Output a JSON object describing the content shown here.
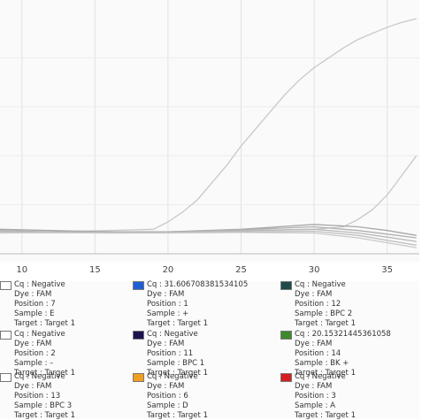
{
  "chart_data": {
    "type": "line",
    "xlabel": "",
    "ylabel": "",
    "x_ticks": [
      10,
      15,
      20,
      25,
      30,
      35
    ],
    "xlim": [
      8.5,
      37.2
    ],
    "ylim": [
      0,
      1
    ],
    "grid": true,
    "series": [
      {
        "x": [
          8.5,
          12,
          16,
          19,
          20,
          21,
          22,
          23,
          24,
          25,
          26,
          27,
          28,
          29,
          30,
          31,
          32,
          33,
          34,
          35,
          36,
          37
        ],
        "y": [
          0.085,
          0.09,
          0.095,
          0.1,
          0.13,
          0.17,
          0.22,
          0.29,
          0.36,
          0.44,
          0.51,
          0.58,
          0.65,
          0.71,
          0.76,
          0.8,
          0.84,
          0.875,
          0.9,
          0.925,
          0.945,
          0.96
        ],
        "color": "#c8c8c8"
      },
      {
        "x": [
          8.5,
          20,
          25,
          30,
          32,
          33,
          34,
          35,
          36,
          37
        ],
        "y": [
          0.085,
          0.09,
          0.095,
          0.1,
          0.11,
          0.14,
          0.18,
          0.24,
          0.32,
          0.4
        ],
        "color": "#c8c8c8"
      },
      {
        "x": [
          8.5,
          12,
          16,
          20,
          25,
          30,
          33,
          35,
          37
        ],
        "y": [
          0.1,
          0.095,
          0.09,
          0.09,
          0.1,
          0.12,
          0.11,
          0.095,
          0.075
        ],
        "color": "#a8a8a8"
      },
      {
        "x": [
          8.5,
          12,
          16,
          20,
          25,
          30,
          33,
          35,
          37
        ],
        "y": [
          0.095,
          0.09,
          0.088,
          0.088,
          0.098,
          0.11,
          0.095,
          0.08,
          0.065
        ],
        "color": "#b0b0b0"
      },
      {
        "x": [
          8.5,
          12,
          16,
          20,
          25,
          30,
          33,
          35,
          37
        ],
        "y": [
          0.09,
          0.088,
          0.086,
          0.087,
          0.094,
          0.1,
          0.085,
          0.068,
          0.05
        ],
        "color": "#b8b8b8"
      },
      {
        "x": [
          8.5,
          12,
          16,
          20,
          25,
          30,
          33,
          35,
          37
        ],
        "y": [
          0.088,
          0.087,
          0.085,
          0.086,
          0.09,
          0.092,
          0.075,
          0.055,
          0.035
        ],
        "color": "#c0c0c0"
      },
      {
        "x": [
          8.5,
          12,
          16,
          20,
          25,
          30,
          33,
          35,
          37
        ],
        "y": [
          0.086,
          0.086,
          0.085,
          0.085,
          0.087,
          0.085,
          0.065,
          0.045,
          0.025
        ],
        "color": "#c8c8c8"
      }
    ]
  },
  "legend": [
    {
      "color": "#ffffff",
      "cq": "Cq : Negative",
      "dye": "Dye : FAM",
      "position": "Position : 7",
      "sample": "Sample : E",
      "target": "Target : Target 1"
    },
    {
      "color": "#1f5fd6",
      "cq": "Cq : 31.606708381534105",
      "dye": "Dye : FAM",
      "position": "Position : 1",
      "sample": "Sample : +",
      "target": "Target : Target 1"
    },
    {
      "color": "#1e4a4a",
      "cq": "Cq : Negative",
      "dye": "Dye : FAM",
      "position": "Position : 12",
      "sample": "Sample : BPC 2",
      "target": "Target : Target 1"
    },
    {
      "color": "#ffffff",
      "cq": "Cq : Negative",
      "dye": "Dye : FAM",
      "position": "Position : 2",
      "sample": "Sample : –",
      "target": "Target : Target 1"
    },
    {
      "color": "#1b1450",
      "cq": "Cq : Negative",
      "dye": "Dye : FAM",
      "position": "Position : 11",
      "sample": "Sample : BPC 1",
      "target": "Target : Target 1"
    },
    {
      "color": "#3d8a2a",
      "cq": "Cq : 20.15321445361058",
      "dye": "Dye : FAM",
      "position": "Position : 14",
      "sample": "Sample : BK +",
      "target": "Target : Target 1"
    },
    {
      "color": "#ffffff",
      "cq": "Cq : Negative",
      "dye": "Dye : FAM",
      "position": "Position : 13",
      "sample": "Sample : BPC 3",
      "target": "Target : Target 1"
    },
    {
      "color": "#f0a020",
      "cq": "Cq : Negative",
      "dye": "Dye : FAM",
      "position": "Position : 6",
      "sample": "Sample : D",
      "target": "Target : Target 1"
    },
    {
      "color": "#d42020",
      "cq": "Cq : Negative",
      "dye": "Dye : FAM",
      "position": "Position : 3",
      "sample": "Sample : A",
      "target": "Target : Target 1"
    }
  ]
}
